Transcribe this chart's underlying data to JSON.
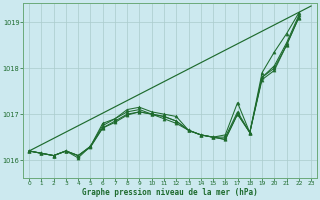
{
  "title": "Graphe pression niveau de la mer (hPa)",
  "bg_color": "#cce9ef",
  "grid_color": "#aacccc",
  "line_color": "#1e6b2e",
  "xlim": [
    -0.5,
    23.5
  ],
  "ylim": [
    1015.62,
    1019.42
  ],
  "yticks": [
    1016,
    1017,
    1018,
    1019
  ],
  "xticks": [
    0,
    1,
    2,
    3,
    4,
    5,
    6,
    7,
    8,
    9,
    10,
    11,
    12,
    13,
    14,
    15,
    16,
    17,
    18,
    19,
    20,
    21,
    22,
    23
  ],
  "straight_line": [
    [
      0,
      1016.2
    ],
    [
      23,
      1019.35
    ]
  ],
  "series_with_markers": [
    [
      1016.2,
      1016.15,
      1016.1,
      1016.2,
      1016.05,
      1016.3,
      1016.8,
      1016.9,
      1017.1,
      1017.15,
      1017.05,
      1017.0,
      1016.95,
      1016.65,
      1016.55,
      1016.5,
      1016.55,
      1017.25,
      1016.6,
      1017.9,
      1018.35,
      1018.75,
      1019.2
    ],
    [
      1016.2,
      1016.15,
      1016.1,
      1016.2,
      1016.1,
      1016.3,
      1016.75,
      1016.9,
      1017.05,
      1017.1,
      1017.0,
      1016.95,
      1016.85,
      1016.65,
      1016.55,
      1016.5,
      1016.5,
      1017.05,
      1016.6,
      1017.8,
      1018.05,
      1018.55,
      1019.15
    ],
    [
      1016.2,
      1016.15,
      1016.1,
      1016.2,
      1016.1,
      1016.3,
      1016.7,
      1016.85,
      1017.0,
      1017.05,
      1017.0,
      1016.95,
      1016.85,
      1016.65,
      1016.55,
      1016.5,
      1016.45,
      1017.0,
      1016.6,
      1017.8,
      1018.0,
      1018.5,
      1019.1
    ],
    [
      1016.2,
      1016.15,
      1016.1,
      1016.2,
      1016.1,
      1016.28,
      1016.7,
      1016.82,
      1016.98,
      1017.05,
      1017.0,
      1016.9,
      1016.8,
      1016.65,
      1016.55,
      1016.5,
      1016.45,
      1017.0,
      1016.6,
      1017.75,
      1017.95,
      1018.5,
      1019.1
    ]
  ]
}
